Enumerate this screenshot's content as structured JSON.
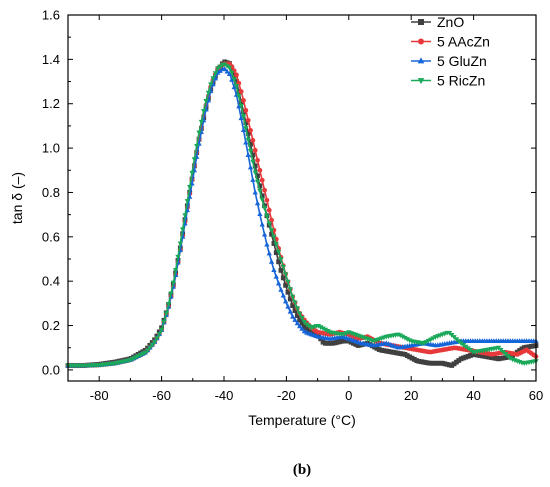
{
  "chart_data": {
    "type": "line",
    "title": "",
    "xlabel": "Temperature (°C)",
    "ylabel": "tan δ (–)",
    "panel_label": "(b)",
    "xlim": [
      -90,
      60
    ],
    "ylim": [
      -0.05,
      1.6
    ],
    "x_ticks": [
      -80,
      -60,
      -40,
      -20,
      0,
      20,
      40,
      60
    ],
    "x_tick_labels": [
      "-80",
      "-60",
      "-40",
      "-20",
      "0",
      "20",
      "40",
      "60"
    ],
    "y_ticks": [
      0.0,
      0.2,
      0.4,
      0.6,
      0.8,
      1.0,
      1.2,
      1.4,
      1.6
    ],
    "y_tick_labels": [
      "0.0",
      "0.2",
      "0.4",
      "0.6",
      "0.8",
      "1.0",
      "1.2",
      "1.4",
      "1.6"
    ],
    "grid": false,
    "legend_position": "top-right",
    "series": [
      {
        "name": "ZnO",
        "color": "#404040",
        "marker": "square",
        "points": [
          [
            -90,
            0.02
          ],
          [
            -85,
            0.02
          ],
          [
            -80,
            0.025
          ],
          [
            -75,
            0.035
          ],
          [
            -70,
            0.05
          ],
          [
            -65,
            0.09
          ],
          [
            -62,
            0.14
          ],
          [
            -60,
            0.19
          ],
          [
            -58,
            0.28
          ],
          [
            -56,
            0.4
          ],
          [
            -54,
            0.55
          ],
          [
            -52,
            0.72
          ],
          [
            -50,
            0.88
          ],
          [
            -48,
            1.04
          ],
          [
            -46,
            1.17
          ],
          [
            -44,
            1.28
          ],
          [
            -42,
            1.35
          ],
          [
            -40,
            1.39
          ],
          [
            -38,
            1.38
          ],
          [
            -36,
            1.3
          ],
          [
            -34,
            1.18
          ],
          [
            -32,
            1.05
          ],
          [
            -30,
            0.92
          ],
          [
            -28,
            0.8
          ],
          [
            -26,
            0.68
          ],
          [
            -24,
            0.57
          ],
          [
            -22,
            0.46
          ],
          [
            -20,
            0.37
          ],
          [
            -18,
            0.29
          ],
          [
            -16,
            0.23
          ],
          [
            -14,
            0.19
          ],
          [
            -12,
            0.17
          ],
          [
            -10,
            0.16
          ],
          [
            -8,
            0.12
          ],
          [
            -5,
            0.12
          ],
          [
            -2,
            0.13
          ],
          [
            0,
            0.13
          ],
          [
            3,
            0.11
          ],
          [
            6,
            0.12
          ],
          [
            10,
            0.09
          ],
          [
            14,
            0.08
          ],
          [
            18,
            0.07
          ],
          [
            22,
            0.04
          ],
          [
            26,
            0.03
          ],
          [
            30,
            0.03
          ],
          [
            33,
            0.02
          ],
          [
            36,
            0.05
          ],
          [
            40,
            0.07
          ],
          [
            44,
            0.06
          ],
          [
            48,
            0.05
          ],
          [
            52,
            0.06
          ],
          [
            56,
            0.1
          ],
          [
            60,
            0.11
          ]
        ]
      },
      {
        "name": "5 AAcZn",
        "color": "#e8393a",
        "marker": "circle",
        "points": [
          [
            -90,
            0.02
          ],
          [
            -85,
            0.02
          ],
          [
            -80,
            0.022
          ],
          [
            -75,
            0.03
          ],
          [
            -70,
            0.045
          ],
          [
            -65,
            0.08
          ],
          [
            -62,
            0.13
          ],
          [
            -60,
            0.18
          ],
          [
            -58,
            0.27
          ],
          [
            -56,
            0.39
          ],
          [
            -54,
            0.54
          ],
          [
            -52,
            0.71
          ],
          [
            -50,
            0.88
          ],
          [
            -48,
            1.04
          ],
          [
            -46,
            1.18
          ],
          [
            -44,
            1.29
          ],
          [
            -42,
            1.36
          ],
          [
            -40,
            1.38
          ],
          [
            -38,
            1.38
          ],
          [
            -36,
            1.33
          ],
          [
            -34,
            1.23
          ],
          [
            -32,
            1.11
          ],
          [
            -30,
            0.99
          ],
          [
            -28,
            0.87
          ],
          [
            -26,
            0.75
          ],
          [
            -24,
            0.63
          ],
          [
            -22,
            0.52
          ],
          [
            -20,
            0.42
          ],
          [
            -18,
            0.33
          ],
          [
            -16,
            0.26
          ],
          [
            -14,
            0.22
          ],
          [
            -12,
            0.19
          ],
          [
            -10,
            0.17
          ],
          [
            -6,
            0.16
          ],
          [
            -3,
            0.17
          ],
          [
            0,
            0.16
          ],
          [
            3,
            0.14
          ],
          [
            6,
            0.15
          ],
          [
            10,
            0.12
          ],
          [
            14,
            0.11
          ],
          [
            18,
            0.1
          ],
          [
            22,
            0.09
          ],
          [
            26,
            0.08
          ],
          [
            30,
            0.09
          ],
          [
            34,
            0.1
          ],
          [
            38,
            0.09
          ],
          [
            42,
            0.08
          ],
          [
            46,
            0.07
          ],
          [
            50,
            0.08
          ],
          [
            54,
            0.07
          ],
          [
            57,
            0.09
          ],
          [
            60,
            0.06
          ]
        ]
      },
      {
        "name": "5 GluZn",
        "color": "#1565d8",
        "marker": "triangle-up",
        "points": [
          [
            -90,
            0.02
          ],
          [
            -85,
            0.02
          ],
          [
            -80,
            0.022
          ],
          [
            -75,
            0.03
          ],
          [
            -70,
            0.045
          ],
          [
            -65,
            0.08
          ],
          [
            -62,
            0.13
          ],
          [
            -60,
            0.18
          ],
          [
            -58,
            0.27
          ],
          [
            -56,
            0.39
          ],
          [
            -54,
            0.54
          ],
          [
            -52,
            0.7
          ],
          [
            -50,
            0.86
          ],
          [
            -48,
            1.02
          ],
          [
            -46,
            1.16
          ],
          [
            -44,
            1.27
          ],
          [
            -42,
            1.34
          ],
          [
            -40,
            1.36
          ],
          [
            -38,
            1.33
          ],
          [
            -36,
            1.24
          ],
          [
            -34,
            1.1
          ],
          [
            -32,
            0.95
          ],
          [
            -30,
            0.8
          ],
          [
            -28,
            0.67
          ],
          [
            -26,
            0.55
          ],
          [
            -24,
            0.45
          ],
          [
            -22,
            0.37
          ],
          [
            -20,
            0.3
          ],
          [
            -18,
            0.24
          ],
          [
            -16,
            0.2
          ],
          [
            -14,
            0.17
          ],
          [
            -12,
            0.16
          ],
          [
            -10,
            0.15
          ],
          [
            -6,
            0.14
          ],
          [
            -2,
            0.15
          ],
          [
            0,
            0.14
          ],
          [
            4,
            0.12
          ],
          [
            8,
            0.11
          ],
          [
            12,
            0.12
          ],
          [
            16,
            0.1
          ],
          [
            20,
            0.11
          ],
          [
            24,
            0.12
          ],
          [
            28,
            0.11
          ],
          [
            32,
            0.12
          ],
          [
            36,
            0.13
          ],
          [
            40,
            0.13
          ],
          [
            44,
            0.13
          ],
          [
            48,
            0.13
          ],
          [
            52,
            0.13
          ],
          [
            56,
            0.13
          ],
          [
            60,
            0.13
          ]
        ]
      },
      {
        "name": "5 RicZn",
        "color": "#1aa85a",
        "marker": "triangle-down",
        "points": [
          [
            -90,
            0.02
          ],
          [
            -85,
            0.02
          ],
          [
            -80,
            0.022
          ],
          [
            -75,
            0.03
          ],
          [
            -70,
            0.045
          ],
          [
            -65,
            0.08
          ],
          [
            -62,
            0.13
          ],
          [
            -60,
            0.18
          ],
          [
            -58,
            0.28
          ],
          [
            -56,
            0.41
          ],
          [
            -54,
            0.57
          ],
          [
            -52,
            0.74
          ],
          [
            -50,
            0.91
          ],
          [
            -48,
            1.07
          ],
          [
            -46,
            1.2
          ],
          [
            -44,
            1.3
          ],
          [
            -42,
            1.36
          ],
          [
            -40,
            1.38
          ],
          [
            -38,
            1.36
          ],
          [
            -36,
            1.28
          ],
          [
            -34,
            1.16
          ],
          [
            -32,
            1.02
          ],
          [
            -30,
            0.89
          ],
          [
            -28,
            0.78
          ],
          [
            -26,
            0.68
          ],
          [
            -24,
            0.6
          ],
          [
            -22,
            0.51
          ],
          [
            -20,
            0.42
          ],
          [
            -18,
            0.33
          ],
          [
            -16,
            0.26
          ],
          [
            -14,
            0.21
          ],
          [
            -12,
            0.19
          ],
          [
            -10,
            0.2
          ],
          [
            -6,
            0.17
          ],
          [
            -2,
            0.16
          ],
          [
            0,
            0.17
          ],
          [
            4,
            0.15
          ],
          [
            8,
            0.13
          ],
          [
            12,
            0.15
          ],
          [
            16,
            0.16
          ],
          [
            20,
            0.13
          ],
          [
            24,
            0.12
          ],
          [
            28,
            0.15
          ],
          [
            32,
            0.17
          ],
          [
            36,
            0.12
          ],
          [
            40,
            0.08
          ],
          [
            44,
            0.09
          ],
          [
            48,
            0.1
          ],
          [
            52,
            0.05
          ],
          [
            56,
            0.03
          ],
          [
            60,
            0.04
          ]
        ]
      }
    ]
  }
}
